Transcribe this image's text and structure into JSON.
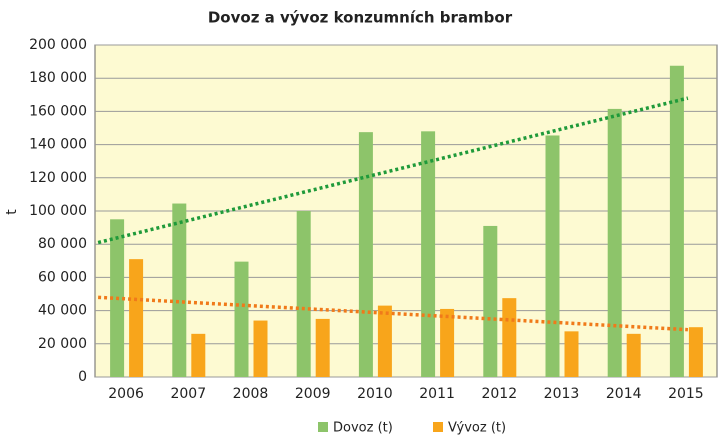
{
  "chart_data": {
    "type": "bar",
    "title": "Dovoz a vývoz konzumních brambor",
    "y_label": "t",
    "categories": [
      "2006",
      "2007",
      "2008",
      "2009",
      "2010",
      "2011",
      "2012",
      "2013",
      "2014",
      "2015"
    ],
    "series": [
      {
        "name": "Dovoz (t)",
        "color": "#8dc46a",
        "values": [
          95000,
          104500,
          69500,
          100000,
          147500,
          148000,
          91000,
          145500,
          161500,
          187500
        ],
        "trend": {
          "color": "#1f9a3a",
          "values": [
            81000,
            168000
          ]
        }
      },
      {
        "name": "Vývoz (t)",
        "color": "#f8a51b",
        "values": [
          71000,
          26000,
          34000,
          35000,
          43000,
          41000,
          47500,
          27500,
          26000,
          30000
        ],
        "trend": {
          "color": "#f07a1a",
          "values": [
            48000,
            28500
          ]
        }
      }
    ],
    "ylim": [
      0,
      200000
    ],
    "yticks": [
      0,
      {
        "value": 20000,
        "label": "20 000"
      },
      {
        "value": 40000,
        "label": "40 000"
      },
      {
        "value": 60000,
        "label": "60 000"
      },
      {
        "value": 80000,
        "label": "80 000"
      },
      {
        "value": 100000,
        "label": "100 000"
      },
      {
        "value": 120000,
        "label": "120 000"
      },
      {
        "value": 140000,
        "label": "140 000"
      },
      {
        "value": 160000,
        "label": "160 000"
      },
      {
        "value": 180000,
        "label": "180 000"
      },
      {
        "value": 200000,
        "label": "200 000"
      }
    ],
    "grid": true,
    "legend": "bottom"
  }
}
